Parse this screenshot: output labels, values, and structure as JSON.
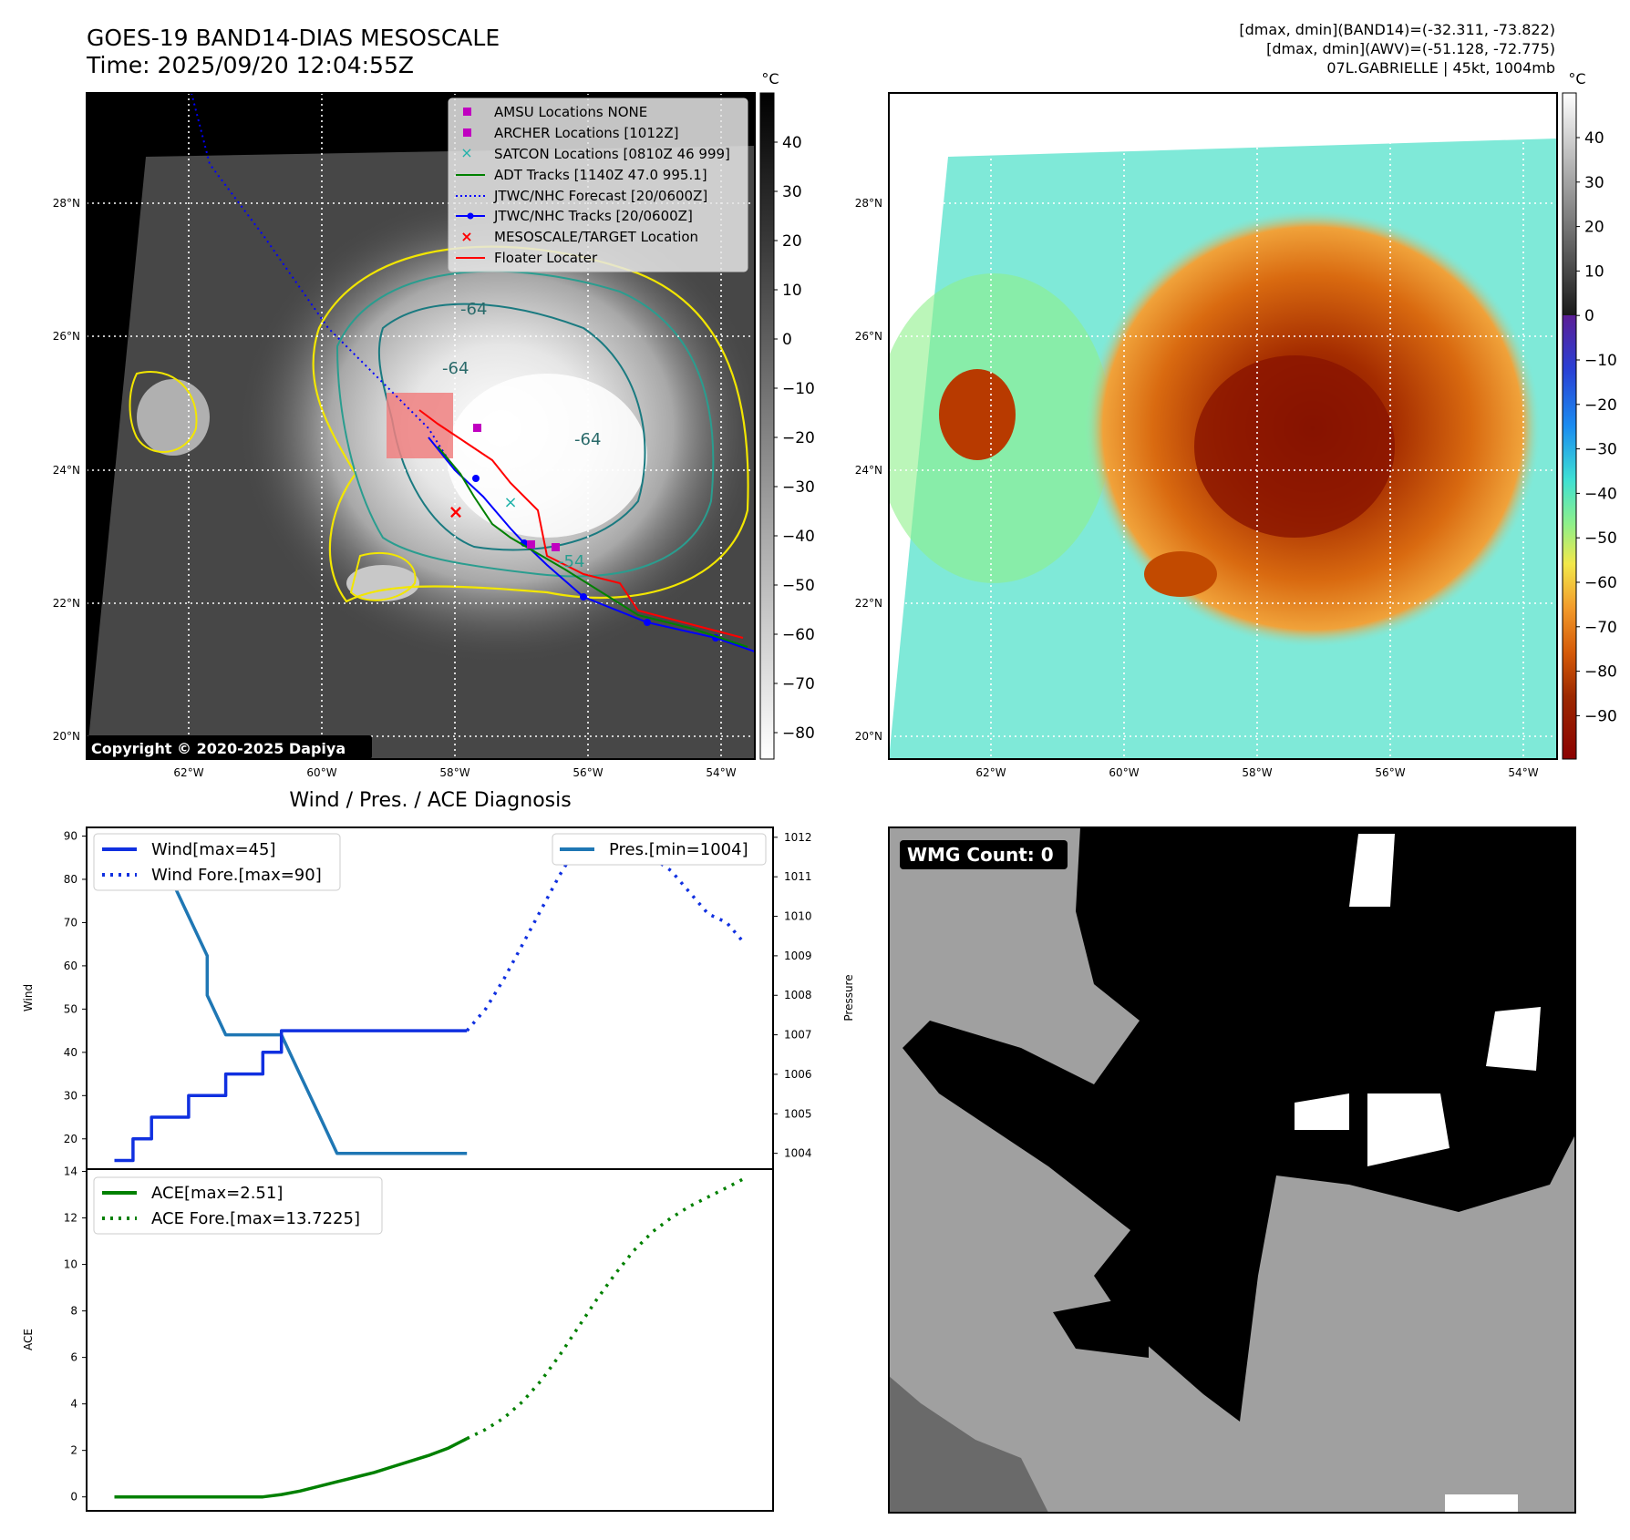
{
  "header": {
    "title_line1": "GOES-19 BAND14-DIAS MESOSCALE",
    "title_line2": "Time: 2025/09/20 12:04:55Z",
    "info_line1": "[dmax, dmin](BAND14)=(-32.311, -73.822)",
    "info_line2": "[dmax, dmin](AWV)=(-51.128, -72.775)",
    "info_line3": "07L.GABRIELLE | 45kt, 1004mb"
  },
  "map_ir": {
    "lat_labels": [
      "28°N",
      "26°N",
      "24°N",
      "22°N",
      "20°N"
    ],
    "lon_labels": [
      "62°W",
      "60°W",
      "58°W",
      "56°W",
      "54°W"
    ],
    "contour_labels": [
      "-64",
      "-64",
      "-54",
      "-64"
    ],
    "copyright": "Copyright © 2020-2025 Dapiya",
    "legend": [
      {
        "label": "AMSU Locations NONE",
        "symbol": "square",
        "color": "#c000c0"
      },
      {
        "label": "ARCHER Locations [1012Z]",
        "symbol": "square",
        "color": "#c000c0"
      },
      {
        "label": "SATCON Locations [0810Z 46 999]",
        "symbol": "x",
        "color": "#20b2aa"
      },
      {
        "label": "ADT Tracks [1140Z 47.0 995.1]",
        "symbol": "line",
        "color": "#008000"
      },
      {
        "label": "JTWC/NHC Forecast [20/0600Z]",
        "symbol": "dotted",
        "color": "#0000ff"
      },
      {
        "label": "JTWC/NHC Tracks [20/0600Z]",
        "symbol": "line-dot",
        "color": "#0000ff"
      },
      {
        "label": "MESOSCALE/TARGET Location",
        "symbol": "x",
        "color": "#ff0000"
      },
      {
        "label": "Floater Locater",
        "symbol": "line",
        "color": "#ff0000"
      }
    ],
    "colorbar_unit": "°C",
    "colorbar_ticks": [
      "40",
      "30",
      "20",
      "10",
      "0",
      "−10",
      "−20",
      "−30",
      "−40",
      "−50",
      "−60",
      "−70",
      "−80"
    ]
  },
  "map_awv": {
    "colorbar_unit": "°C",
    "colorbar_ticks": [
      "40",
      "30",
      "20",
      "10",
      "0",
      "−10",
      "−20",
      "−30",
      "−40",
      "−50",
      "−60",
      "−70",
      "−80",
      "−90"
    ],
    "lat_labels": [
      "28°N",
      "26°N",
      "24°N",
      "22°N",
      "20°N"
    ],
    "lon_labels": [
      "62°W",
      "60°W",
      "58°W",
      "56°W",
      "54°W"
    ]
  },
  "wmg": {
    "label": "WMG Count: 0"
  },
  "chart_data": [
    {
      "type": "line",
      "title": "Wind / Pres. / ACE Diagnosis",
      "ylabel": "Wind",
      "ylabel_right": "Pressure",
      "ylim": [
        13,
        92
      ],
      "ylim_right": [
        1003.6,
        1012.25
      ],
      "yticks": [
        20,
        30,
        40,
        50,
        60,
        70,
        80,
        90
      ],
      "yticks_right": [
        1004,
        1005,
        1006,
        1007,
        1008,
        1009,
        1010,
        1011,
        1012
      ],
      "xlim": [
        -1.5,
        35.5
      ],
      "series": [
        {
          "name": "Wind[max=45]",
          "axis": "left",
          "style": "solid",
          "color": "#1030e0",
          "x": [
            0,
            1,
            1,
            2,
            2,
            3,
            3,
            4,
            4,
            5,
            5,
            6,
            6,
            7,
            7,
            8,
            8,
            9,
            9,
            10,
            10,
            11,
            11,
            12,
            12,
            13,
            13,
            14,
            14,
            15,
            15,
            16,
            16,
            17,
            17,
            18,
            18,
            19,
            19
          ],
          "values": [
            15,
            15,
            20,
            20,
            25,
            25,
            25,
            25,
            30,
            30,
            30,
            30,
            35,
            35,
            35,
            35,
            40,
            40,
            45,
            45,
            45,
            45,
            45,
            45,
            45,
            45,
            45,
            45,
            45,
            45,
            45,
            45,
            45,
            45,
            45,
            45,
            45,
            45,
            45
          ]
        },
        {
          "name": "Wind Fore.[max=90]",
          "axis": "left",
          "style": "dotted",
          "color": "#1030e0",
          "x": [
            19,
            20,
            21,
            22,
            23,
            24,
            25,
            26,
            27,
            28,
            29,
            30,
            31,
            32,
            33,
            34
          ],
          "values": [
            45,
            50,
            57,
            65,
            73,
            81,
            88,
            90,
            90,
            88,
            85,
            82,
            77,
            72,
            70,
            65
          ]
        },
        {
          "name": "Pres.[min=1004]",
          "axis": "right",
          "style": "solid",
          "color": "#1f77b4",
          "x": [
            0,
            1,
            1,
            2,
            2,
            3,
            3,
            4,
            4,
            5,
            5,
            6,
            7,
            8,
            9,
            10,
            11,
            12,
            13,
            14,
            15,
            16,
            17,
            18,
            19
          ],
          "values": [
            1012,
            1012,
            1012,
            1011.6,
            1011.6,
            1011,
            1011,
            1010,
            1010,
            1009,
            1008,
            1007,
            1007,
            1007,
            1007,
            1006,
            1005,
            1004,
            1004,
            1004,
            1004,
            1004,
            1004,
            1004,
            1004
          ]
        }
      ]
    },
    {
      "type": "line",
      "ylabel": "ACE",
      "ylim": [
        -0.6,
        14.1
      ],
      "yticks": [
        0,
        2,
        4,
        6,
        8,
        10,
        12,
        14
      ],
      "xlim": [
        -1.5,
        35.5
      ],
      "series": [
        {
          "name": "ACE[max=2.51]",
          "style": "solid",
          "color": "#008000",
          "x": [
            0,
            2,
            4,
            6,
            8,
            9,
            10,
            11,
            12,
            13,
            14,
            15,
            16,
            17,
            18,
            19
          ],
          "values": [
            0,
            0,
            0,
            0,
            0,
            0.1,
            0.25,
            0.45,
            0.65,
            0.85,
            1.05,
            1.3,
            1.55,
            1.8,
            2.1,
            2.51
          ]
        },
        {
          "name": "ACE Fore.[max=13.7225]",
          "style": "dotted",
          "color": "#008000",
          "x": [
            19,
            20,
            21,
            22,
            23,
            24,
            25,
            26,
            27,
            28,
            29,
            30,
            31,
            32,
            33,
            34
          ],
          "values": [
            2.51,
            2.9,
            3.4,
            4.1,
            5.0,
            6.1,
            7.3,
            8.5,
            9.6,
            10.6,
            11.4,
            12.0,
            12.5,
            12.9,
            13.3,
            13.72
          ]
        }
      ]
    }
  ]
}
